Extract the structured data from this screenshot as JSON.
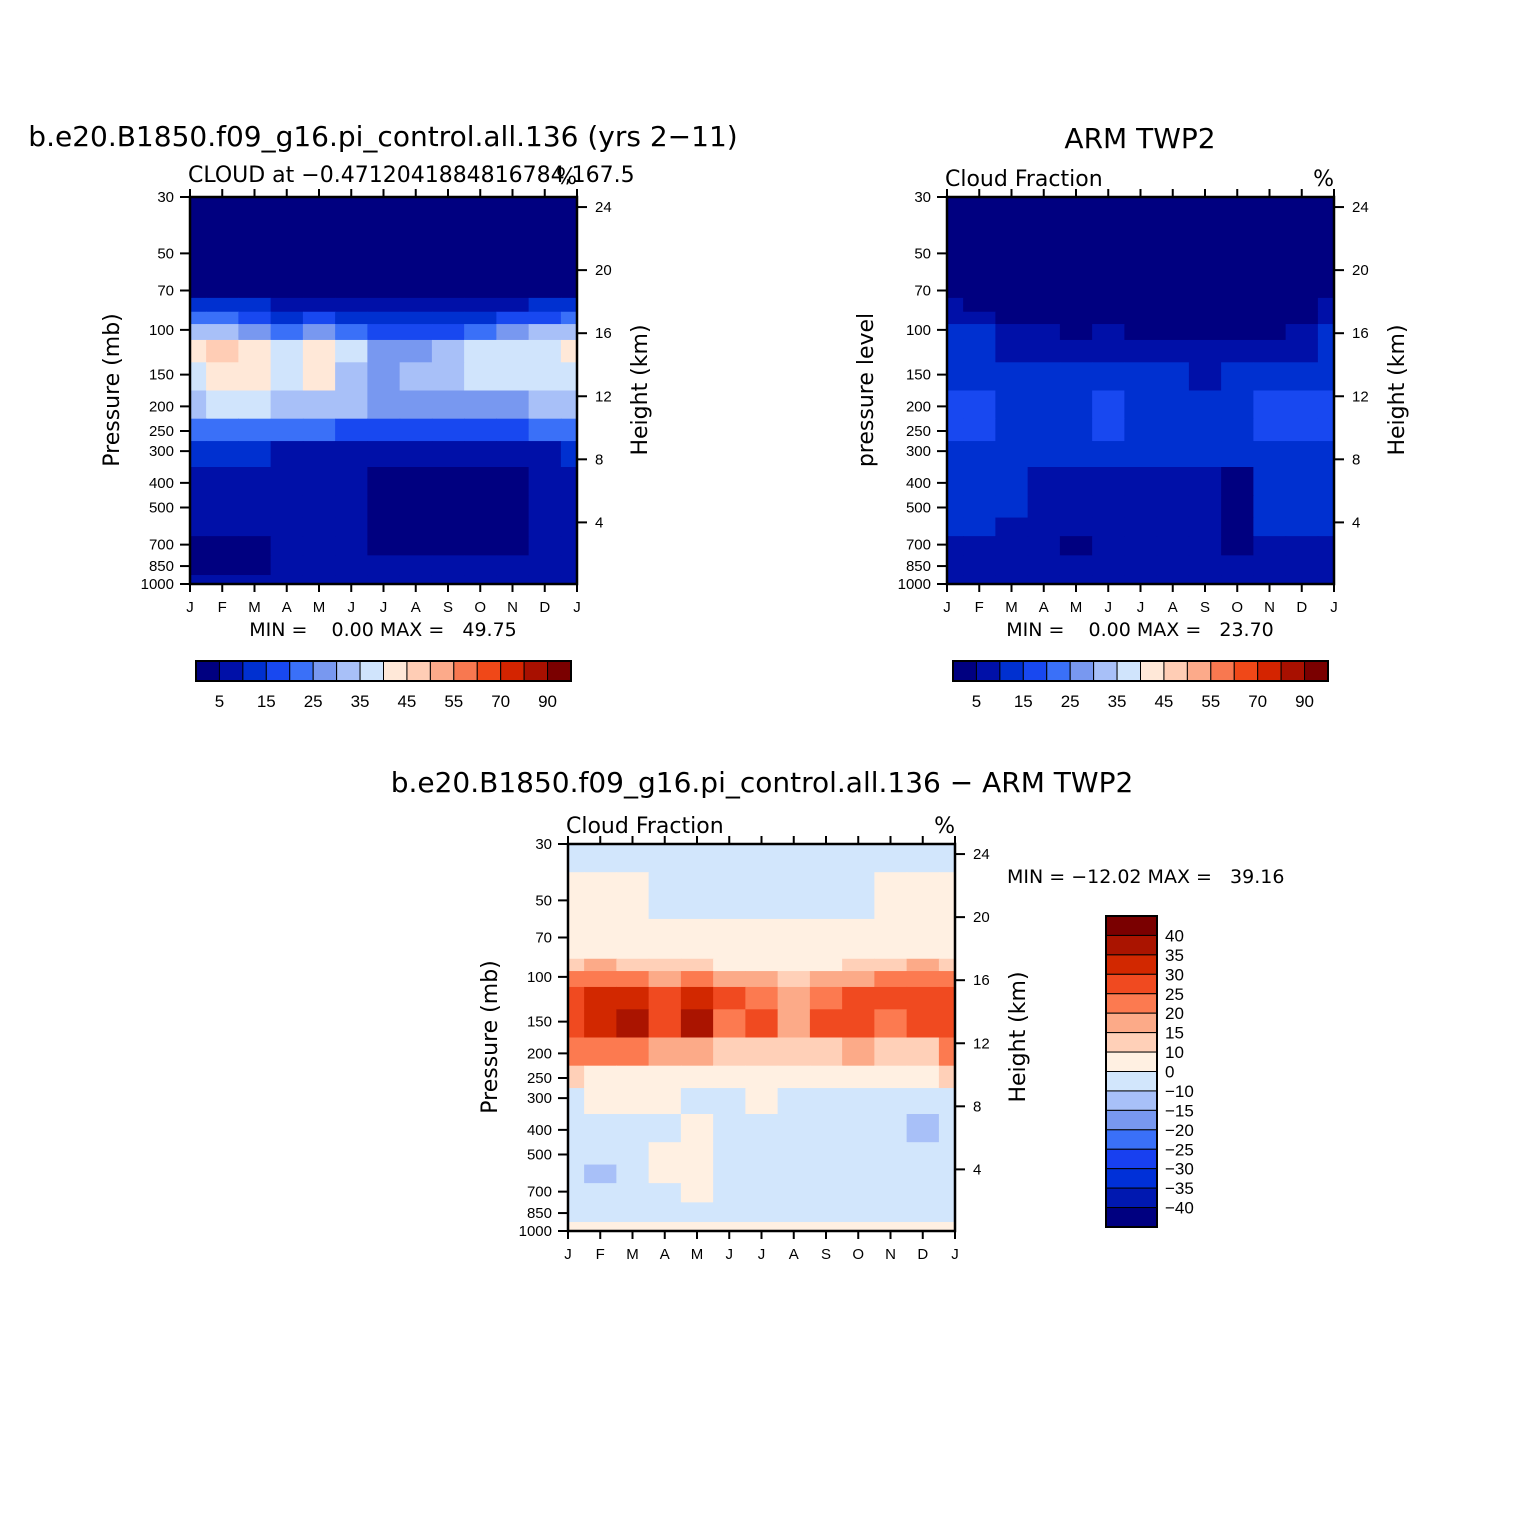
{
  "colors": {
    "cloud_scale": [
      "#000080",
      "#0010a8",
      "#0030d0",
      "#1848f0",
      "#3a70f8",
      "#7898f0",
      "#a8c0f8",
      "#d0e4fc",
      "#ffe8d8",
      "#ffcdb5",
      "#fcaa8a",
      "#f87850",
      "#f04818",
      "#d42400",
      "#a81000",
      "#7a0000"
    ],
    "diff_scale": [
      "#000080",
      "#0018b0",
      "#0030d8",
      "#1840f0",
      "#3a70f8",
      "#7898f0",
      "#a8c0f8",
      "#d2e6fc",
      "#fff0e2",
      "#ffd0b8",
      "#fcaa88",
      "#fc7a50",
      "#f04a20",
      "#d22800",
      "#aa1400",
      "#7a0000"
    ]
  },
  "panels": [
    {
      "id": "model",
      "main_title": "b.e20.B1850.f09_g16.pi_control.all.136 (yrs 2−11)",
      "left_title": "CLOUD at −0.4712041884816784,167.5",
      "right_title": "%",
      "ylabel": "Pressure (mb)",
      "ylabel_right": "Height (km)",
      "minmax": "MIN =    0.00 MAX =   49.75",
      "cbar_labels": [
        "5",
        "15",
        "25",
        "35",
        "45",
        "55",
        "70",
        "90"
      ]
    },
    {
      "id": "obs",
      "main_title": "ARM TWP2",
      "left_title": "Cloud Fraction",
      "right_title": "%",
      "ylabel": "pressure level",
      "ylabel_right": "Height (km)",
      "minmax": "MIN =    0.00 MAX =   23.70",
      "cbar_labels": [
        "5",
        "15",
        "25",
        "35",
        "45",
        "55",
        "70",
        "90"
      ]
    },
    {
      "id": "diff",
      "main_title": "b.e20.B1850.f09_g16.pi_control.all.136 − ARM TWP2",
      "left_title": "Cloud Fraction",
      "right_title": "%",
      "ylabel": "Pressure (mb)",
      "ylabel_right": "Height (km)",
      "minmax": "MIN = −12.02 MAX =   39.16",
      "cbar_labels": [
        "40",
        "35",
        "30",
        "25",
        "20",
        "15",
        "10",
        "0",
        "−10",
        "−15",
        "−20",
        "−25",
        "−30",
        "−35",
        "−40"
      ]
    }
  ],
  "chart_data": [
    {
      "type": "heatmap",
      "title": "b.e20.B1850.f09_g16.pi_control.all.136 (yrs 2−11)",
      "subtitle": "CLOUD at −0.4712041884816784,167.5",
      "units": "%",
      "xlabel": "",
      "ylabel": "Pressure (mb)",
      "ylabel_right": "Height (km)",
      "x_ticks": [
        "J",
        "F",
        "M",
        "A",
        "M",
        "J",
        "J",
        "A",
        "S",
        "O",
        "N",
        "D",
        "J"
      ],
      "y_ticks": [
        30,
        50,
        70,
        100,
        150,
        200,
        250,
        300,
        400,
        500,
        700,
        850,
        1000
      ],
      "y_right_ticks": [
        24,
        20,
        16,
        12,
        8,
        4
      ],
      "levels": [
        5,
        10,
        15,
        20,
        25,
        30,
        35,
        40,
        45,
        50,
        55,
        60,
        70,
        80,
        90
      ],
      "months": [
        "J",
        "F",
        "M",
        "A",
        "M",
        "J",
        "J",
        "A",
        "S",
        "O",
        "N",
        "D",
        "J"
      ],
      "pressures": [
        30,
        50,
        70,
        80,
        90,
        100,
        120,
        150,
        200,
        250,
        300,
        400,
        500,
        600,
        700,
        850,
        1000
      ],
      "values": [
        [
          2,
          2,
          2,
          2,
          2,
          2,
          2,
          2,
          2,
          2,
          2,
          2,
          2
        ],
        [
          2,
          2,
          2,
          2,
          2,
          2,
          2,
          2,
          2,
          2,
          2,
          2,
          2
        ],
        [
          3,
          3,
          3,
          3,
          3,
          3,
          3,
          3,
          3,
          3,
          3,
          3,
          3
        ],
        [
          14,
          12,
          10,
          8,
          9,
          6,
          6,
          6,
          6,
          7,
          9,
          12,
          14
        ],
        [
          22,
          20,
          16,
          12,
          15,
          10,
          10,
          10,
          10,
          12,
          15,
          18,
          22
        ],
        [
          32,
          30,
          25,
          22,
          28,
          20,
          18,
          16,
          18,
          22,
          26,
          30,
          32
        ],
        [
          40,
          45,
          40,
          35,
          42,
          35,
          26,
          28,
          30,
          35,
          38,
          38,
          40
        ],
        [
          38,
          42,
          40,
          36,
          44,
          32,
          28,
          30,
          32,
          36,
          36,
          36,
          38
        ],
        [
          34,
          36,
          36,
          30,
          34,
          30,
          26,
          26,
          26,
          28,
          28,
          30,
          34
        ],
        [
          24,
          24,
          22,
          20,
          20,
          18,
          18,
          16,
          16,
          16,
          18,
          20,
          24
        ],
        [
          10,
          10,
          10,
          9,
          9,
          8,
          8,
          8,
          8,
          8,
          8,
          9,
          10
        ],
        [
          7,
          7,
          7,
          7,
          6,
          5,
          3,
          3,
          3,
          3,
          3,
          5,
          7
        ],
        [
          7,
          7,
          7,
          7,
          6,
          6,
          3,
          3,
          3,
          3,
          3,
          5,
          7
        ],
        [
          7,
          7,
          7,
          7,
          6,
          6,
          3,
          3,
          3,
          3,
          3,
          5,
          7
        ],
        [
          3,
          3,
          3,
          5,
          6,
          6,
          3,
          3,
          3,
          3,
          3,
          6,
          6
        ],
        [
          3,
          3,
          3,
          5,
          6,
          6,
          6,
          6,
          6,
          6,
          6,
          6,
          6
        ],
        [
          7,
          7,
          7,
          7,
          7,
          7,
          7,
          7,
          7,
          7,
          7,
          7,
          7
        ]
      ],
      "min": 0.0,
      "max": 49.75
    },
    {
      "type": "heatmap",
      "title": "ARM TWP2",
      "subtitle": "Cloud Fraction",
      "units": "%",
      "xlabel": "",
      "ylabel": "pressure level",
      "ylabel_right": "Height (km)",
      "x_ticks": [
        "J",
        "F",
        "M",
        "A",
        "M",
        "J",
        "J",
        "A",
        "S",
        "O",
        "N",
        "D",
        "J"
      ],
      "y_ticks": [
        30,
        50,
        70,
        100,
        150,
        200,
        250,
        300,
        400,
        500,
        700,
        850,
        1000
      ],
      "y_right_ticks": [
        24,
        20,
        16,
        12,
        8,
        4
      ],
      "levels": [
        5,
        10,
        15,
        20,
        25,
        30,
        35,
        40,
        45,
        50,
        55,
        60,
        70,
        80,
        90
      ],
      "months": [
        "J",
        "F",
        "M",
        "A",
        "M",
        "J",
        "J",
        "A",
        "S",
        "O",
        "N",
        "D",
        "J"
      ],
      "pressures": [
        30,
        50,
        70,
        80,
        90,
        100,
        120,
        150,
        200,
        250,
        300,
        400,
        500,
        600,
        700,
        850,
        1000
      ],
      "values": [
        [
          2,
          2,
          2,
          2,
          2,
          2,
          2,
          2,
          2,
          2,
          2,
          2,
          2
        ],
        [
          2,
          2,
          2,
          2,
          2,
          2,
          2,
          2,
          2,
          2,
          2,
          2,
          2
        ],
        [
          2,
          2,
          2,
          2,
          2,
          2,
          2,
          2,
          2,
          2,
          2,
          2,
          2
        ],
        [
          7,
          3,
          2,
          2,
          2,
          2,
          2,
          2,
          2,
          2,
          2,
          2,
          7
        ],
        [
          9,
          7,
          4,
          3,
          2,
          2,
          2,
          2,
          2,
          2,
          2,
          4,
          9
        ],
        [
          11,
          10,
          8,
          6,
          3,
          5,
          2,
          2,
          2,
          2,
          4,
          7,
          11
        ],
        [
          12,
          11,
          9,
          8,
          9,
          9,
          8,
          7,
          7,
          8,
          8,
          9,
          12
        ],
        [
          14,
          12,
          12,
          12,
          13,
          14,
          12,
          11,
          9,
          12,
          13,
          13,
          14
        ],
        [
          16,
          17,
          13,
          12,
          13,
          17,
          13,
          13,
          14,
          13,
          17,
          17,
          16
        ],
        [
          15,
          15,
          12,
          12,
          12,
          15,
          13,
          12,
          12,
          12,
          16,
          15,
          15
        ],
        [
          14,
          14,
          12,
          12,
          12,
          13,
          12,
          12,
          11,
          12,
          14,
          14,
          14
        ],
        [
          13,
          12,
          11,
          9,
          8,
          8,
          8,
          8,
          7,
          2,
          12,
          12,
          13
        ],
        [
          13,
          11,
          11,
          9,
          8,
          8,
          8,
          9,
          8,
          2,
          12,
          12,
          13
        ],
        [
          11,
          10,
          9,
          9,
          8,
          8,
          8,
          8,
          8,
          2,
          10,
          10,
          11
        ],
        [
          9,
          9,
          9,
          9,
          4,
          9,
          9,
          9,
          9,
          4,
          9,
          9,
          9
        ],
        [
          7,
          7,
          7,
          7,
          7,
          7,
          7,
          7,
          7,
          7,
          7,
          7,
          7
        ],
        [
          5,
          5,
          5,
          5,
          5,
          5,
          5,
          5,
          5,
          5,
          5,
          5,
          5
        ]
      ],
      "min": 0.0,
      "max": 23.7
    },
    {
      "type": "heatmap",
      "title": "b.e20.B1850.f09_g16.pi_control.all.136 − ARM TWP2",
      "subtitle": "Cloud Fraction",
      "units": "%",
      "xlabel": "",
      "ylabel": "Pressure (mb)",
      "ylabel_right": "Height (km)",
      "x_ticks": [
        "J",
        "F",
        "M",
        "A",
        "M",
        "J",
        "J",
        "A",
        "S",
        "O",
        "N",
        "D",
        "J"
      ],
      "y_ticks": [
        30,
        50,
        70,
        100,
        150,
        200,
        250,
        300,
        400,
        500,
        700,
        850,
        1000
      ],
      "y_right_ticks": [
        24,
        20,
        16,
        12,
        8,
        4
      ],
      "levels": [
        -40,
        -35,
        -30,
        -25,
        -20,
        -15,
        -10,
        0,
        10,
        15,
        20,
        25,
        30,
        35,
        40
      ],
      "months": [
        "J",
        "F",
        "M",
        "A",
        "M",
        "J",
        "J",
        "A",
        "S",
        "O",
        "N",
        "D",
        "J"
      ],
      "pressures": [
        30,
        50,
        70,
        80,
        90,
        100,
        120,
        150,
        200,
        250,
        300,
        400,
        500,
        600,
        700,
        850,
        1000
      ],
      "values": [
        [
          -2,
          -2,
          -2,
          -2,
          -2,
          -2,
          -2,
          -2,
          -2,
          -2,
          -2,
          -2,
          -2
        ],
        [
          2,
          2,
          2,
          -2,
          -2,
          -2,
          -2,
          -2,
          -2,
          -2,
          2,
          2,
          2
        ],
        [
          3,
          3,
          3,
          1,
          4,
          2,
          1,
          1,
          1,
          1,
          3,
          3,
          3
        ],
        [
          5,
          6,
          6,
          5,
          6,
          4,
          4,
          4,
          4,
          5,
          5,
          6,
          5
        ],
        [
          14,
          15,
          13,
          11,
          14,
          9,
          9,
          8,
          8,
          11,
          12,
          15,
          14
        ],
        [
          22,
          24,
          21,
          18,
          22,
          17,
          15,
          13,
          15,
          18,
          20,
          22,
          22
        ],
        [
          28,
          32,
          32,
          28,
          32,
          25,
          22,
          19,
          23,
          27,
          26,
          26,
          28
        ],
        [
          28,
          31,
          35,
          27,
          35,
          24,
          27,
          19,
          28,
          25,
          24,
          25,
          28
        ],
        [
          22,
          22,
          20,
          16,
          18,
          14,
          14,
          13,
          14,
          16,
          13,
          14,
          22
        ],
        [
          10,
          8,
          8,
          6,
          8,
          4,
          4,
          4,
          4,
          4,
          6,
          6,
          10
        ],
        [
          -2,
          1,
          3,
          1,
          -2,
          -3,
          1,
          -2,
          -2,
          -3,
          -2,
          -2,
          -2
        ],
        [
          -5,
          -5,
          -4,
          -2,
          5,
          -2,
          -5,
          -5,
          -5,
          -2,
          -4,
          -12,
          -5
        ],
        [
          -4,
          -4,
          -4,
          2,
          5,
          -2,
          -5,
          -6,
          -5,
          -2,
          -4,
          -4,
          -4
        ],
        [
          -4,
          -12,
          -4,
          2,
          4,
          -2,
          -5,
          -6,
          -5,
          -2,
          -4,
          -4,
          -4
        ],
        [
          -4,
          -4,
          -3,
          -2,
          3,
          -2,
          -3,
          -3,
          -3,
          -2,
          -3,
          -3,
          -4
        ],
        [
          -3,
          -3,
          -3,
          -2,
          -2,
          -2,
          -2,
          -2,
          -2,
          -2,
          -2,
          -3,
          -3
        ],
        [
          2,
          2,
          2,
          2,
          2,
          2,
          2,
          2,
          2,
          2,
          2,
          2,
          2
        ]
      ],
      "min": -12.02,
      "max": 39.16
    }
  ]
}
